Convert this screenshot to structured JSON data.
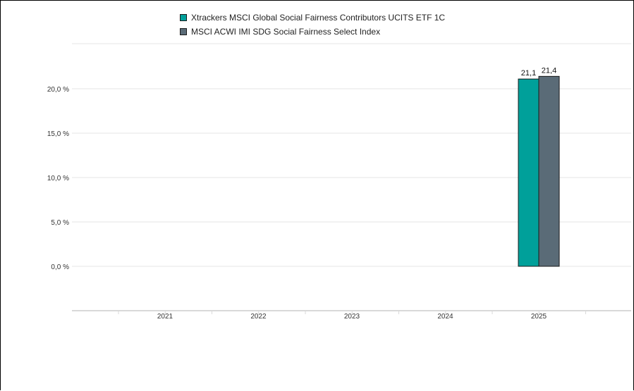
{
  "chart_data": {
    "type": "bar",
    "categories": [
      "2021",
      "2022",
      "2023",
      "2024",
      "2025"
    ],
    "series": [
      {
        "name": "Xtrackers MSCI Global Social Fairness Contributors UCITS ETF 1C",
        "color": "#00a09a",
        "values": [
          null,
          null,
          null,
          null,
          21.1
        ],
        "data_labels": [
          "",
          "",
          "",
          "",
          "21,1"
        ]
      },
      {
        "name": "MSCI ACWI IMI SDG Social Fairness Select Index",
        "color": "#5a6b77",
        "values": [
          null,
          null,
          null,
          null,
          21.4
        ],
        "data_labels": [
          "",
          "",
          "",
          "",
          "21,4"
        ]
      }
    ],
    "y_ticks": [
      0,
      5,
      10,
      15,
      20
    ],
    "y_tick_labels": [
      "0,0 %",
      "5,0 %",
      "10,0 %",
      "15,0 %",
      "20,0 %"
    ],
    "ylim": [
      -5,
      25
    ],
    "legend_position": "top-center",
    "grid": true
  }
}
